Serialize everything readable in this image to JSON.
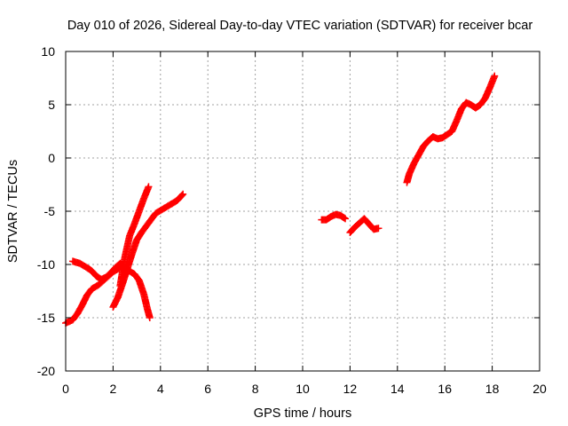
{
  "chart_data": {
    "type": "scatter",
    "title": "Day 010 of 2026, Sidereal Day-to-day VTEC variation (SDTVAR) for receiver bcar",
    "xlabel": "GPS time / hours",
    "ylabel": "SDTVAR / TECUs",
    "xlim": [
      0,
      20
    ],
    "ylim": [
      -20,
      10
    ],
    "xticks": [
      0,
      2,
      4,
      6,
      8,
      10,
      12,
      14,
      16,
      18,
      20
    ],
    "yticks": [
      10,
      5,
      0,
      -5,
      -10,
      -15,
      -20
    ],
    "grid": true,
    "marker": "plus",
    "color": "#ff0000",
    "series": [
      {
        "points": [
          [
            0.0,
            -15.5
          ],
          [
            0.3,
            -15.2
          ],
          [
            0.5,
            -14.6
          ],
          [
            0.7,
            -13.8
          ],
          [
            0.9,
            -12.9
          ],
          [
            1.1,
            -12.3
          ],
          [
            1.4,
            -11.9
          ],
          [
            1.7,
            -11.3
          ],
          [
            2.0,
            -10.7
          ],
          [
            2.3,
            -10.3
          ],
          [
            2.6,
            -10.5
          ],
          [
            2.9,
            -10.9
          ],
          [
            3.1,
            -11.5
          ],
          [
            3.3,
            -12.8
          ],
          [
            3.45,
            -14.2
          ],
          [
            3.55,
            -15.0
          ]
        ]
      },
      {
        "points": [
          [
            0.3,
            -9.7
          ],
          [
            0.6,
            -9.9
          ],
          [
            0.9,
            -10.3
          ],
          [
            1.1,
            -10.6
          ],
          [
            1.3,
            -11.1
          ],
          [
            1.5,
            -11.4
          ],
          [
            1.7,
            -11.2
          ],
          [
            1.9,
            -10.8
          ],
          [
            2.1,
            -10.3
          ],
          [
            2.3,
            -9.9
          ]
        ]
      },
      {
        "points": [
          [
            2.0,
            -14.0
          ],
          [
            2.2,
            -13.1
          ],
          [
            2.4,
            -11.8
          ],
          [
            2.6,
            -10.4
          ],
          [
            2.8,
            -9.0
          ],
          [
            3.0,
            -7.7
          ],
          [
            3.2,
            -7.0
          ],
          [
            3.4,
            -6.4
          ],
          [
            3.6,
            -5.8
          ],
          [
            3.8,
            -5.2
          ],
          [
            4.1,
            -4.8
          ],
          [
            4.4,
            -4.4
          ],
          [
            4.7,
            -4.0
          ],
          [
            4.95,
            -3.4
          ]
        ]
      },
      {
        "points": [
          [
            2.3,
            -12.0
          ],
          [
            2.5,
            -9.3
          ],
          [
            2.7,
            -7.3
          ],
          [
            2.9,
            -6.2
          ],
          [
            3.1,
            -5.0
          ],
          [
            3.3,
            -3.8
          ],
          [
            3.5,
            -2.7
          ]
        ]
      },
      {
        "points": [
          [
            10.8,
            -5.8
          ],
          [
            11.0,
            -5.8
          ],
          [
            11.2,
            -5.5
          ],
          [
            11.4,
            -5.3
          ],
          [
            11.6,
            -5.4
          ],
          [
            11.8,
            -5.7
          ]
        ]
      },
      {
        "points": [
          [
            12.0,
            -7.0
          ],
          [
            12.2,
            -6.5
          ],
          [
            12.4,
            -6.1
          ],
          [
            12.6,
            -5.7
          ],
          [
            12.8,
            -6.2
          ],
          [
            13.0,
            -6.7
          ],
          [
            13.2,
            -6.6
          ]
        ]
      },
      {
        "points": [
          [
            14.4,
            -2.3
          ],
          [
            14.5,
            -1.5
          ],
          [
            14.7,
            -0.5
          ],
          [
            14.9,
            0.3
          ],
          [
            15.1,
            1.1
          ],
          [
            15.3,
            1.6
          ],
          [
            15.5,
            2.0
          ],
          [
            15.7,
            1.8
          ],
          [
            15.9,
            1.9
          ],
          [
            16.1,
            2.2
          ],
          [
            16.3,
            2.5
          ],
          [
            16.5,
            3.5
          ],
          [
            16.7,
            4.6
          ],
          [
            16.9,
            5.2
          ],
          [
            17.1,
            5.0
          ],
          [
            17.3,
            4.7
          ],
          [
            17.5,
            5.0
          ],
          [
            17.7,
            5.6
          ],
          [
            17.9,
            6.6
          ],
          [
            18.1,
            7.7
          ]
        ]
      }
    ]
  }
}
